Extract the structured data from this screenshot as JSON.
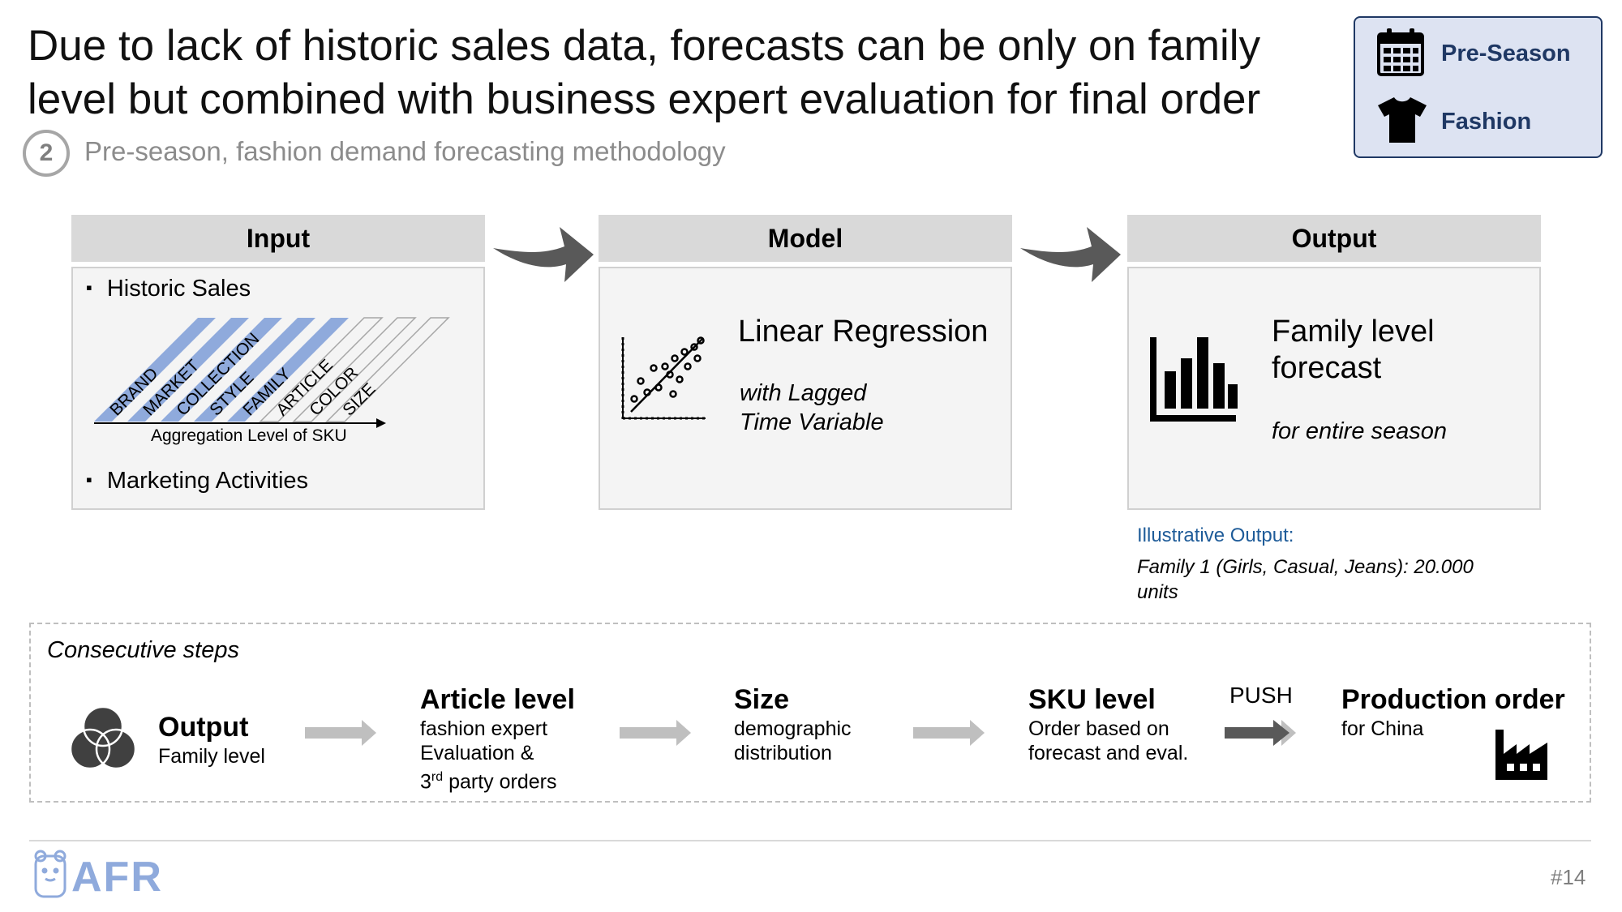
{
  "title": "Due to lack of historic sales data, forecasts can be only on family level but combined with business expert evaluation for final order",
  "step_number": "2",
  "subtitle": "Pre-season, fashion demand forecasting methodology",
  "tags": {
    "preseason": {
      "label": "Pre-Season",
      "icon": "calendar-icon"
    },
    "fashion": {
      "label": "Fashion",
      "icon": "tshirt-icon"
    }
  },
  "panels": {
    "input": {
      "title": "Input",
      "bullet1": "Historic Sales",
      "bullet2": "Marketing Activities",
      "chart": {
        "levels": [
          "BRAND",
          "MARKET",
          "COLLECTION",
          "STYLE",
          "FAMILY",
          "ARTICLE",
          "COLOR",
          "SIZE"
        ],
        "highlighted_levels": [
          "BRAND",
          "MARKET",
          "COLLECTION",
          "STYLE",
          "FAMILY"
        ],
        "axis_label": "Aggregation Level of SKU",
        "highlight_color": "#8faadc"
      }
    },
    "model": {
      "title": "Model",
      "heading": "Linear Regression",
      "sub1": "with Lagged",
      "sub2": "Time Variable",
      "icon": "scatter-plot-icon"
    },
    "output": {
      "title": "Output",
      "heading1": "Family level",
      "heading2": "forecast",
      "sub": "for entire season",
      "icon": "bar-chart-icon"
    }
  },
  "illustrative": {
    "label": "Illustrative Output:",
    "value": "Family 1 (Girls, Casual, Jeans): 20.000 units"
  },
  "steps": {
    "label": "Consecutive steps",
    "items": [
      {
        "title": "Output",
        "desc": "Family level",
        "icon": "venn-icon"
      },
      {
        "title": "Article level",
        "desc1": "fashion expert",
        "desc2": "Evaluation &",
        "desc3_pre": "3",
        "desc3_sup": "rd",
        "desc3_post": " party orders"
      },
      {
        "title": "Size",
        "desc1": "demographic",
        "desc2": "distribution"
      },
      {
        "title": "SKU level",
        "desc1": "Order based on",
        "desc2": "forecast and eval."
      },
      {
        "title": "Production order",
        "desc": "for China",
        "icon": "factory-icon"
      }
    ],
    "push_label": "PUSH"
  },
  "footer": {
    "logo": "AFR",
    "page": "#14"
  },
  "colors": {
    "navy": "#1f3864",
    "tag_bg": "#dde3f2",
    "panel_head": "#d9d9d9",
    "panel_body": "#f4f4f4",
    "arrow_dark": "#595959",
    "arrow_light": "#bfbfbf",
    "link_blue": "#1f5c99",
    "logo_blue": "#8faadc"
  }
}
